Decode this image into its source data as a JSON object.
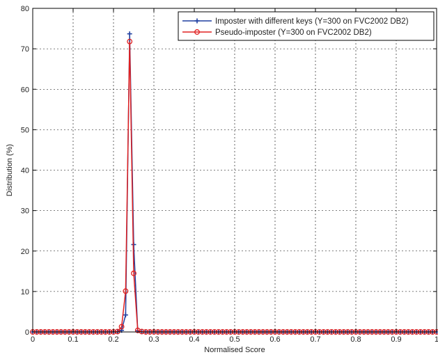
{
  "chart_data": {
    "type": "line",
    "title": "",
    "xlabel": "Normalised Score",
    "ylabel": "Distribution (%)",
    "xlim": [
      0,
      1
    ],
    "ylim": [
      0,
      80
    ],
    "xticks": [
      0,
      0.1,
      0.2,
      0.3,
      0.4,
      0.5,
      0.6,
      0.7,
      0.8,
      0.9,
      1
    ],
    "yticks": [
      0,
      10,
      20,
      30,
      40,
      50,
      60,
      70,
      80
    ],
    "xtick_labels": [
      "0",
      "0.1",
      "0.2",
      "0.3",
      "0.4",
      "0.5",
      "0.6",
      "0.7",
      "0.8",
      "0.9",
      "1"
    ],
    "ytick_labels": [
      "0",
      "10",
      "20",
      "30",
      "40",
      "50",
      "60",
      "70",
      "80"
    ],
    "grid": true,
    "legend_position": "top-right",
    "series": [
      {
        "name": "Imposter with different keys (Y=300 on FVC2002 DB2)",
        "color": "#1f3fa0",
        "marker": "plus",
        "x": [
          0,
          0.01,
          0.02,
          0.03,
          0.04,
          0.05,
          0.06,
          0.07,
          0.08,
          0.09,
          0.1,
          0.11,
          0.12,
          0.13,
          0.14,
          0.15,
          0.16,
          0.17,
          0.18,
          0.19,
          0.2,
          0.21,
          0.22,
          0.23,
          0.24,
          0.25,
          0.26,
          0.27,
          0.28,
          0.29,
          0.3,
          0.31,
          0.32,
          0.33,
          0.34,
          0.35,
          0.36,
          0.37,
          0.38,
          0.39,
          0.4,
          0.41,
          0.42,
          0.43,
          0.44,
          0.45,
          0.46,
          0.47,
          0.48,
          0.49,
          0.5,
          0.51,
          0.52,
          0.53,
          0.54,
          0.55,
          0.56,
          0.57,
          0.58,
          0.59,
          0.6,
          0.61,
          0.62,
          0.63,
          0.64,
          0.65,
          0.66,
          0.67,
          0.68,
          0.69,
          0.7,
          0.71,
          0.72,
          0.73,
          0.74,
          0.75,
          0.76,
          0.77,
          0.78,
          0.79,
          0.8,
          0.81,
          0.82,
          0.83,
          0.84,
          0.85,
          0.86,
          0.87,
          0.88,
          0.89,
          0.9,
          0.91,
          0.92,
          0.93,
          0.94,
          0.95,
          0.96,
          0.97,
          0.98,
          0.99,
          1
        ],
        "y": [
          0,
          0,
          0,
          0,
          0,
          0,
          0,
          0,
          0,
          0,
          0,
          0,
          0,
          0,
          0,
          0,
          0,
          0,
          0,
          0,
          0,
          0.05,
          0.4,
          4.2,
          73.7,
          21.6,
          0.3,
          0.05,
          0,
          0,
          0,
          0,
          0,
          0,
          0,
          0,
          0,
          0,
          0,
          0,
          0,
          0,
          0,
          0,
          0,
          0,
          0,
          0,
          0,
          0,
          0,
          0,
          0,
          0,
          0,
          0,
          0,
          0,
          0,
          0,
          0,
          0,
          0,
          0,
          0,
          0,
          0,
          0,
          0,
          0,
          0,
          0,
          0,
          0,
          0,
          0,
          0,
          0,
          0,
          0,
          0,
          0,
          0,
          0,
          0,
          0,
          0,
          0,
          0,
          0,
          0,
          0,
          0,
          0,
          0,
          0,
          0,
          0,
          0,
          0,
          0
        ]
      },
      {
        "name": "Pseudo-imposter (Y=300 on FVC2002 DB2)",
        "color": "#e02020",
        "marker": "circle",
        "x": [
          0,
          0.01,
          0.02,
          0.03,
          0.04,
          0.05,
          0.06,
          0.07,
          0.08,
          0.09,
          0.1,
          0.11,
          0.12,
          0.13,
          0.14,
          0.15,
          0.16,
          0.17,
          0.18,
          0.19,
          0.2,
          0.21,
          0.22,
          0.23,
          0.24,
          0.25,
          0.26,
          0.27,
          0.28,
          0.29,
          0.3,
          0.31,
          0.32,
          0.33,
          0.34,
          0.35,
          0.36,
          0.37,
          0.38,
          0.39,
          0.4,
          0.41,
          0.42,
          0.43,
          0.44,
          0.45,
          0.46,
          0.47,
          0.48,
          0.49,
          0.5,
          0.51,
          0.52,
          0.53,
          0.54,
          0.55,
          0.56,
          0.57,
          0.58,
          0.59,
          0.6,
          0.61,
          0.62,
          0.63,
          0.64,
          0.65,
          0.66,
          0.67,
          0.68,
          0.69,
          0.7,
          0.71,
          0.72,
          0.73,
          0.74,
          0.75,
          0.76,
          0.77,
          0.78,
          0.79,
          0.8,
          0.81,
          0.82,
          0.83,
          0.84,
          0.85,
          0.86,
          0.87,
          0.88,
          0.89,
          0.9,
          0.91,
          0.92,
          0.93,
          0.94,
          0.95,
          0.96,
          0.97,
          0.98,
          0.99,
          1
        ],
        "y": [
          0,
          0,
          0,
          0,
          0,
          0,
          0,
          0,
          0,
          0,
          0,
          0,
          0,
          0,
          0,
          0,
          0,
          0,
          0,
          0,
          0,
          0.1,
          1.3,
          10.1,
          71.8,
          14.5,
          0.4,
          0.1,
          0,
          0,
          0,
          0,
          0,
          0,
          0,
          0,
          0,
          0,
          0,
          0,
          0,
          0,
          0,
          0,
          0,
          0,
          0,
          0,
          0,
          0,
          0,
          0,
          0,
          0,
          0,
          0,
          0,
          0,
          0,
          0,
          0,
          0,
          0,
          0,
          0,
          0,
          0,
          0,
          0,
          0,
          0,
          0,
          0,
          0,
          0,
          0,
          0,
          0,
          0,
          0,
          0,
          0,
          0,
          0,
          0,
          0,
          0,
          0,
          0,
          0,
          0,
          0,
          0,
          0,
          0,
          0,
          0,
          0,
          0,
          0,
          0
        ]
      }
    ]
  }
}
